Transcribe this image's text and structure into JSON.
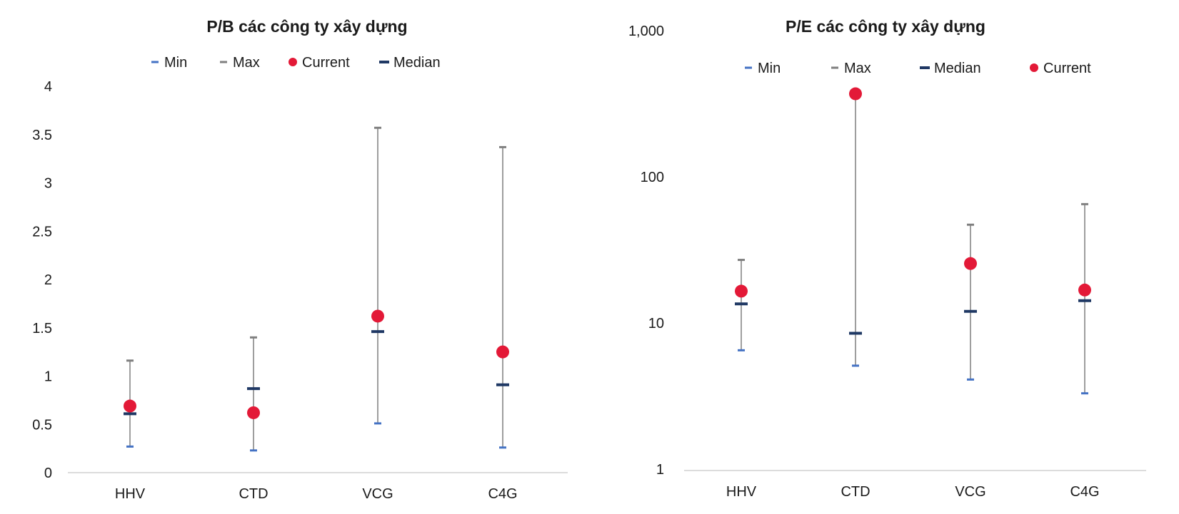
{
  "chart_data": [
    {
      "type": "scatter",
      "title": "P/B các công ty xây dựng",
      "xlabel": "",
      "ylabel": "",
      "ylim": [
        0,
        4
      ],
      "yticks": [
        "0",
        "0.5",
        "1",
        "1.5",
        "2",
        "2.5",
        "3",
        "3.5",
        "4"
      ],
      "categories": [
        "HHV",
        "CTD",
        "VCG",
        "C4G"
      ],
      "legend": [
        "Min",
        "Max",
        "Current",
        "Median"
      ],
      "legend_position": "top",
      "grid": false,
      "series": [
        {
          "name": "Min",
          "values": [
            0.27,
            0.23,
            0.51,
            0.26
          ],
          "color": "#4472c4"
        },
        {
          "name": "Max",
          "values": [
            1.16,
            1.4,
            3.57,
            3.37
          ],
          "color": "#7f7f7f"
        },
        {
          "name": "Current",
          "values": [
            0.69,
            0.62,
            1.62,
            1.25
          ],
          "color": "#e31937"
        },
        {
          "name": "Median",
          "values": [
            0.61,
            0.87,
            1.46,
            0.91
          ],
          "color": "#1f3864"
        }
      ]
    },
    {
      "type": "scatter",
      "title": "P/E các công ty xây dựng",
      "xlabel": "",
      "ylabel": "",
      "scale": "log",
      "ylim": [
        1,
        1000
      ],
      "yticks": [
        "1",
        "10",
        "100",
        "1,000"
      ],
      "categories": [
        "HHV",
        "CTD",
        "VCG",
        "C4G"
      ],
      "legend": [
        "Min",
        "Max",
        "Median",
        "Current"
      ],
      "legend_position": "top",
      "grid": false,
      "series": [
        {
          "name": "Min",
          "values": [
            6.5,
            5.1,
            4.1,
            3.3
          ],
          "color": "#4472c4"
        },
        {
          "name": "Max",
          "values": [
            27,
            370,
            47,
            65
          ],
          "color": "#7f7f7f"
        },
        {
          "name": "Median",
          "values": [
            13.5,
            8.5,
            12,
            14.2
          ],
          "color": "#1f3864"
        },
        {
          "name": "Current",
          "values": [
            16.5,
            370,
            25.5,
            16.8
          ],
          "color": "#e31937"
        }
      ]
    }
  ]
}
